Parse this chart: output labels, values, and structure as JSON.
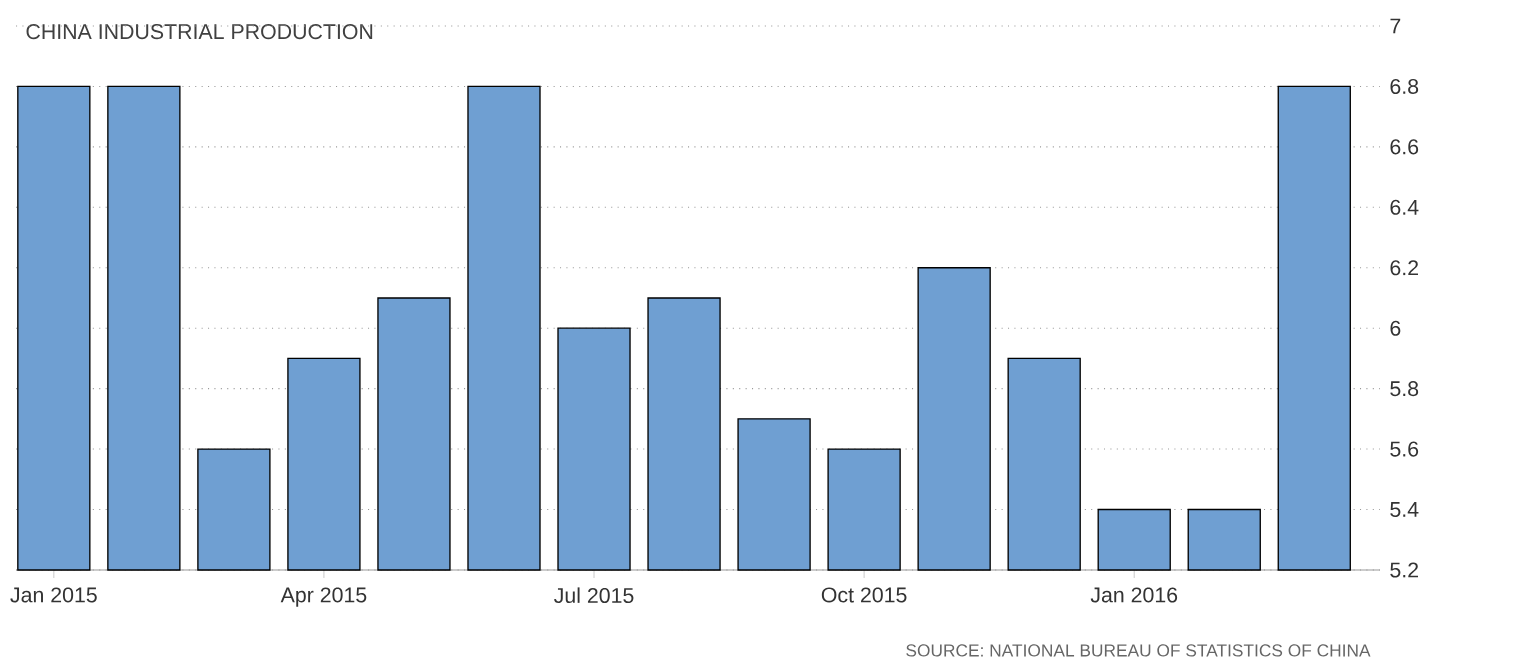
{
  "chart_data": {
    "type": "bar",
    "title": "CHINA INDUSTRIAL PRODUCTION",
    "categories": [
      "Jan 2015",
      null,
      null,
      "Apr 2015",
      null,
      null,
      "Jul 2015",
      null,
      null,
      "Oct 2015",
      null,
      null,
      "Jan 2016",
      null,
      null
    ],
    "values": [
      6.8,
      6.8,
      5.6,
      5.9,
      6.1,
      6.8,
      6.0,
      6.1,
      5.7,
      5.6,
      6.2,
      5.9,
      5.4,
      5.4,
      6.8
    ],
    "color": "#6f9fd2",
    "ylim": [
      5.2,
      7
    ],
    "yticks": [
      5.2,
      5.4,
      5.6,
      5.8,
      6,
      6.2,
      6.4,
      6.6,
      6.8,
      7
    ],
    "grid": "y",
    "annotations": [
      "SOURCE: NATIONAL BUREAU OF STATISTICS OF CHINA"
    ]
  }
}
